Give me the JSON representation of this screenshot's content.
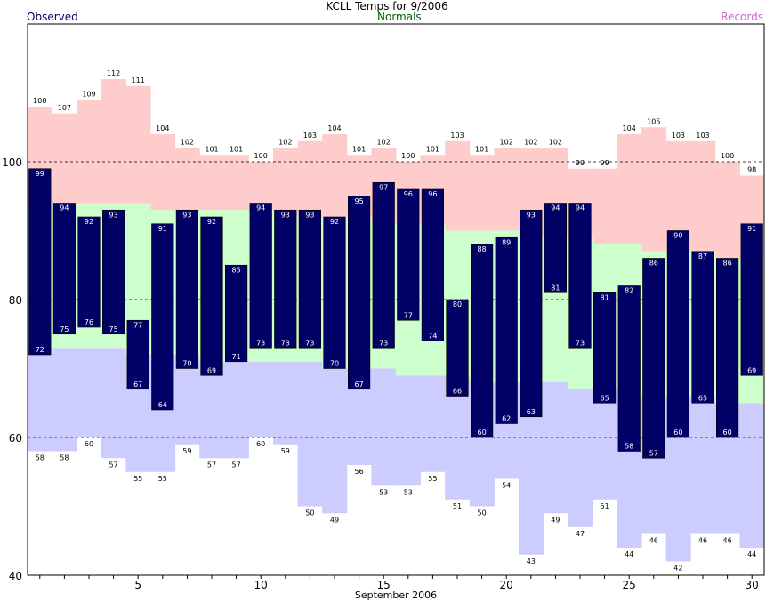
{
  "header": {
    "observed_label": "Observed",
    "normals_label": "Normals",
    "records_label": "Records"
  },
  "colors": {
    "observed": "#000066",
    "normals_band": "#ccffcc",
    "records_high": "#ffcccc",
    "records_low": "#ccccff",
    "observed_text": "#000066",
    "normals_text": "#006600",
    "records_text": "#cc66cc"
  },
  "chart_data": {
    "type": "bar",
    "title": "KCLL Temps for 9/2006",
    "xlabel": "September 2006",
    "ylabel": "",
    "days": [
      1,
      2,
      3,
      4,
      5,
      6,
      7,
      8,
      9,
      10,
      11,
      12,
      13,
      14,
      15,
      16,
      17,
      18,
      19,
      20,
      21,
      22,
      23,
      24,
      25,
      26,
      27,
      28,
      29,
      30
    ],
    "x_ticks": [
      5,
      10,
      15,
      20,
      25,
      30
    ],
    "ylim": [
      40,
      120
    ],
    "y_ticks": [
      40,
      60,
      80,
      100
    ],
    "gridlines": [
      60,
      80,
      100
    ],
    "legend": "top",
    "series": [
      {
        "name": "Observed",
        "kind": "high",
        "values": [
          99,
          94,
          92,
          93,
          77,
          91,
          93,
          92,
          85,
          94,
          93,
          93,
          92,
          95,
          97,
          96,
          96,
          80,
          88,
          89,
          93,
          94,
          94,
          81,
          82,
          86,
          90,
          87,
          86,
          91
        ]
      },
      {
        "name": "Observed",
        "kind": "low",
        "values": [
          72,
          75,
          76,
          75,
          67,
          64,
          70,
          69,
          71,
          73,
          73,
          73,
          70,
          67,
          73,
          77,
          74,
          66,
          60,
          62,
          63,
          81,
          73,
          65,
          58,
          57,
          60,
          65,
          60,
          69
        ]
      },
      {
        "name": "Normals",
        "kind": "high",
        "values": [
          94,
          94,
          94,
          94,
          94,
          93,
          93,
          93,
          93,
          93,
          92,
          92,
          92,
          92,
          91,
          91,
          91,
          90,
          90,
          90,
          89,
          89,
          89,
          88,
          88,
          87,
          87,
          87,
          86,
          86
        ]
      },
      {
        "name": "Normals",
        "kind": "low",
        "values": [
          73,
          73,
          73,
          73,
          72,
          72,
          72,
          71,
          71,
          71,
          71,
          71,
          70,
          70,
          70,
          69,
          69,
          69,
          68,
          68,
          68,
          68,
          67,
          67,
          66,
          66,
          66,
          66,
          65,
          65
        ]
      },
      {
        "name": "Records",
        "kind": "high",
        "values": [
          108,
          107,
          109,
          112,
          111,
          104,
          102,
          101,
          101,
          100,
          102,
          103,
          104,
          101,
          102,
          100,
          101,
          103,
          101,
          102,
          102,
          102,
          99,
          99,
          104,
          105,
          103,
          103,
          100,
          98
        ]
      },
      {
        "name": "Records",
        "kind": "low",
        "values": [
          58,
          58,
          60,
          57,
          55,
          55,
          59,
          57,
          57,
          60,
          59,
          50,
          49,
          56,
          53,
          53,
          55,
          51,
          50,
          54,
          43,
          49,
          47,
          51,
          44,
          46,
          42,
          46,
          46,
          44
        ]
      }
    ]
  }
}
